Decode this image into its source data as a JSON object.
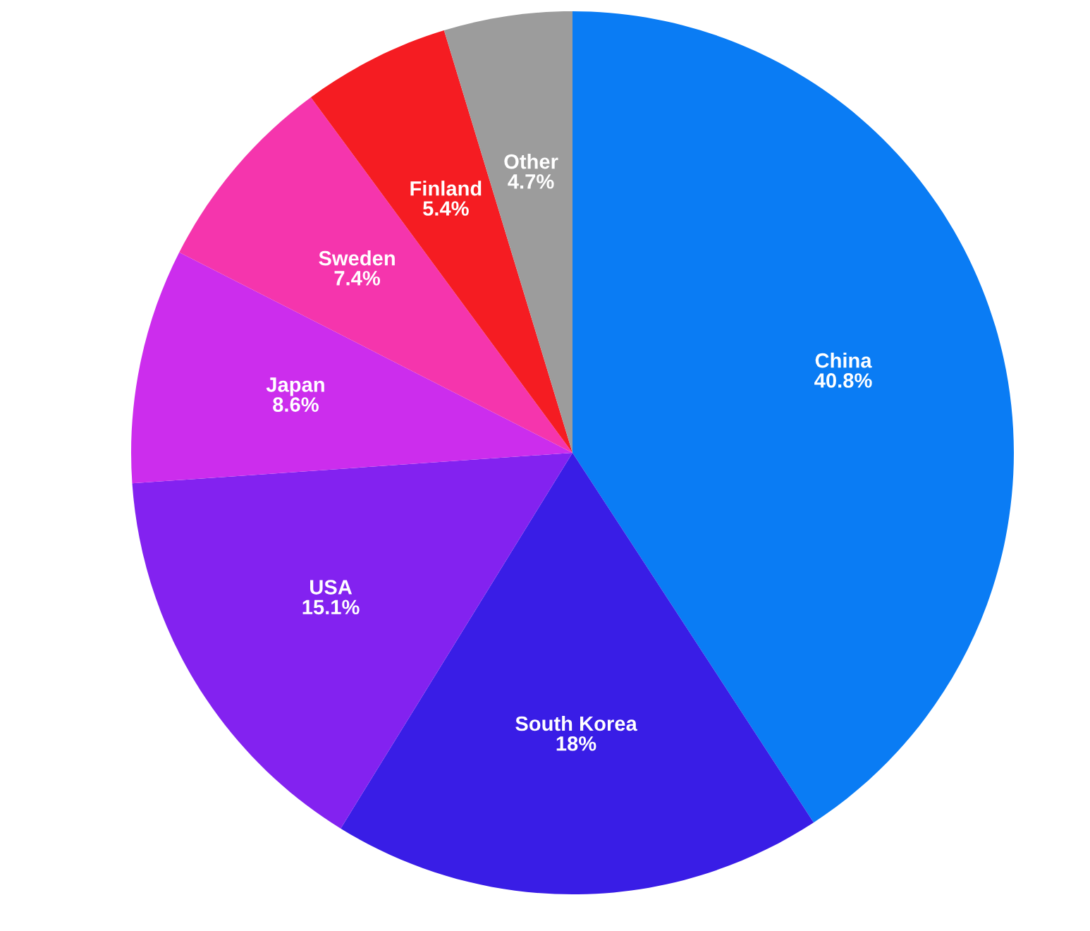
{
  "chart_data": {
    "type": "pie",
    "categories": [
      "China",
      "South Korea",
      "USA",
      "Japan",
      "Sweden",
      "Finland",
      "Other"
    ],
    "values": [
      40.8,
      18,
      15.1,
      8.6,
      7.4,
      5.4,
      4.7
    ],
    "value_labels": [
      "40.8%",
      "18%",
      "15.1%",
      "8.6%",
      "7.4%",
      "5.4%",
      "4.7%"
    ],
    "colors": [
      "#0a7cf4",
      "#391de6",
      "#8322f0",
      "#cc2ded",
      "#f535ad",
      "#f51c22",
      "#9c9c9c"
    ],
    "legend": false
  }
}
